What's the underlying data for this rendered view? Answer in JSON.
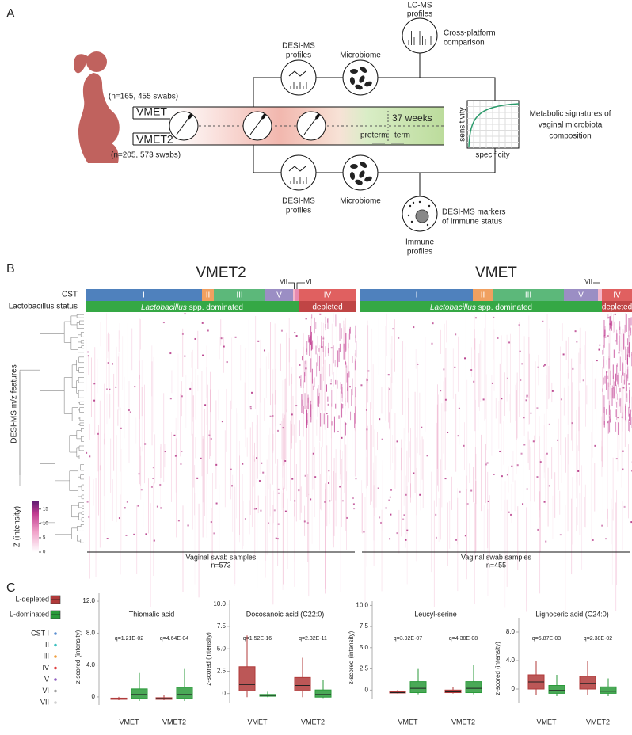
{
  "panel_a": {
    "label": "A",
    "cohorts": [
      {
        "name": "VMET",
        "n": "(n=165, 455 swabs)"
      },
      {
        "name": "VMET2",
        "n": "(n=205, 573 swabs)"
      }
    ],
    "gestation": {
      "cutoff": "37 weeks",
      "preterm": "preterm",
      "term": "term"
    },
    "nodes": {
      "desi_top": [
        "DESI-MS",
        "profiles"
      ],
      "microbiome_top": "Microbiome",
      "lcms": [
        "LC-MS",
        "profiles"
      ],
      "cross": [
        "Cross-platform",
        "comparison"
      ],
      "roc_y": "sensitivity",
      "roc_x": "specificity",
      "signatures": [
        "Metabolic signatures of",
        "vaginal microbiota",
        "composition"
      ],
      "desi_bottom": [
        "DESI-MS",
        "profiles"
      ],
      "microbiome_bottom": "Microbiome",
      "markers": [
        "DESI-MS markers",
        "of immune status"
      ],
      "immune": [
        "Immune",
        "profiles"
      ]
    }
  },
  "panel_b": {
    "label": "B",
    "cst_label": "CST",
    "status_label": "Lactobacillus status",
    "features_label": "DESI-MS m/z features",
    "cst_colors": {
      "I": "#4f81bd",
      "II": "#f0a060",
      "III": "#5cb87a",
      "IV": "#e06060",
      "V": "#9b8ec4",
      "VI": "#e88ab0",
      "VII": "#f4b6c8"
    },
    "status_colors": {
      "dominated": "#35a845",
      "depleted": "#c04545"
    },
    "cohorts": [
      {
        "title": "VMET2",
        "cst": [
          "I",
          "II",
          "III",
          "V",
          "VII",
          "VI",
          "IV"
        ],
        "genus": "Lactobacillus",
        "dominated": " spp. dominated",
        "depleted": "depleted",
        "samples": "Vaginal swab samples",
        "n": "n=573"
      },
      {
        "title": "VMET",
        "cst": [
          "I",
          "II",
          "III",
          "V",
          "VII",
          "IV"
        ],
        "genus": "Lactobacillus",
        "dominated": " spp. dominated",
        "depleted": "depleted",
        "samples": "Vaginal swab samples",
        "n": "n=455"
      }
    ],
    "colorbar": {
      "label": "Z (intensity)",
      "lim": [
        0,
        18
      ],
      "ticks": [
        0,
        5,
        10,
        15
      ]
    }
  },
  "panel_c": {
    "label": "C",
    "groups": [
      "L-depleted",
      "L-dominated"
    ],
    "cst": [
      "CST I",
      "II",
      "III",
      "IV",
      "V",
      "VI",
      "VII"
    ],
    "cst_colors": [
      "#5b8fd0",
      "#3cc0c0",
      "#f0a040",
      "#e04040",
      "#9060c0",
      "#a0a0a0",
      "#d0d0d0"
    ]
  },
  "chart_data": [
    {
      "type": "box",
      "title": "Thiomalic acid",
      "ylabel": "z-scored (intensity)",
      "categories": [
        "VMET",
        "VMET2"
      ],
      "annotations": [
        "q=1.21E-02",
        "q=4.64E-04"
      ],
      "ylim": [
        -1,
        13
      ],
      "yticks": [
        0,
        {
          "value": 4,
          "label": "4.0"
        },
        {
          "value": 8,
          "label": "8.0"
        },
        {
          "value": 12,
          "label": "12.0"
        }
      ],
      "series": [
        {
          "name": "L-depleted",
          "color": "#b03a3a",
          "low": [
            -0.4,
            -0.4
          ],
          "q1": [
            -0.3,
            -0.3
          ],
          "median": [
            -0.25,
            -0.2
          ],
          "q3": [
            -0.15,
            -0.1
          ],
          "high": [
            0,
            0.2
          ]
        },
        {
          "name": "L-dominated",
          "color": "#2a9a3a",
          "low": [
            -0.5,
            -0.5
          ],
          "q1": [
            -0.2,
            -0.2
          ],
          "median": [
            0.3,
            0.3
          ],
          "q3": [
            1.0,
            1.2
          ],
          "high": [
            3,
            3.5
          ]
        }
      ]
    },
    {
      "type": "box",
      "title": "Docosanoic acid (C22:0)",
      "ylabel": "z-scored (intensity)",
      "categories": [
        "VMET",
        "VMET2"
      ],
      "annotations": [
        "q=1.52E-16",
        "q=2.32E-11"
      ],
      "ylim": [
        -1,
        10.5
      ],
      "yticks": [
        0,
        2.5,
        {
          "value": 5,
          "label": "5.0"
        },
        7.5,
        {
          "value": 10,
          "label": "10.0"
        }
      ],
      "series": [
        {
          "name": "L-depleted",
          "color": "#b03a3a",
          "low": [
            -0.4,
            -0.4
          ],
          "q1": [
            0.3,
            0.3
          ],
          "median": [
            1.0,
            0.9
          ],
          "q3": [
            3.0,
            1.8
          ],
          "high": [
            6.5,
            4
          ]
        },
        {
          "name": "L-dominated",
          "color": "#2a9a3a",
          "low": [
            -0.4,
            -0.5
          ],
          "q1": [
            -0.3,
            -0.4
          ],
          "median": [
            -0.2,
            -0.1
          ],
          "q3": [
            -0.1,
            0.4
          ],
          "high": [
            0.2,
            1.5
          ]
        }
      ]
    },
    {
      "type": "box",
      "title": "Leucyl-serine",
      "ylabel": "z-scored (intensity)",
      "categories": [
        "VMET",
        "VMET2"
      ],
      "annotations": [
        "q=3.92E-07",
        "q=4.38E-08"
      ],
      "ylim": [
        -1,
        10.5
      ],
      "yticks": [
        0,
        2.5,
        {
          "value": 5,
          "label": "5.0"
        },
        7.5,
        {
          "value": 10,
          "label": "10.0"
        }
      ],
      "series": [
        {
          "name": "L-depleted",
          "color": "#b03a3a",
          "low": [
            -0.4,
            -0.4
          ],
          "q1": [
            -0.3,
            -0.3
          ],
          "median": [
            -0.3,
            -0.2
          ],
          "q3": [
            -0.2,
            0
          ],
          "high": [
            0,
            0.4
          ]
        },
        {
          "name": "L-dominated",
          "color": "#2a9a3a",
          "low": [
            -0.5,
            -0.5
          ],
          "q1": [
            -0.3,
            -0.3
          ],
          "median": [
            0.2,
            0.2
          ],
          "q3": [
            1.0,
            1.0
          ],
          "high": [
            2.5,
            3
          ]
        }
      ]
    },
    {
      "type": "box",
      "title": "Lignoceric acid (C24:0)",
      "ylabel": "z-scored (intensity)",
      "categories": [
        "VMET",
        "VMET2"
      ],
      "annotations": [
        "q=5.87E-03",
        "q=2.38E-02"
      ],
      "ylim": [
        -2,
        10
      ],
      "yticks": [
        0,
        {
          "value": 4,
          "label": "4.0"
        },
        {
          "value": 8,
          "label": "8.0"
        }
      ],
      "series": [
        {
          "name": "L-depleted",
          "color": "#b03a3a",
          "low": [
            -0.8,
            -0.8
          ],
          "q1": [
            0,
            0
          ],
          "median": [
            1.0,
            0.8
          ],
          "q3": [
            2.0,
            1.8
          ],
          "high": [
            4,
            4
          ]
        },
        {
          "name": "L-dominated",
          "color": "#2a9a3a",
          "low": [
            -1,
            -1
          ],
          "q1": [
            -0.6,
            -0.6
          ],
          "median": [
            -0.2,
            -0.3
          ],
          "q3": [
            0.5,
            0.3
          ],
          "high": [
            2,
            1.5
          ]
        }
      ]
    }
  ]
}
